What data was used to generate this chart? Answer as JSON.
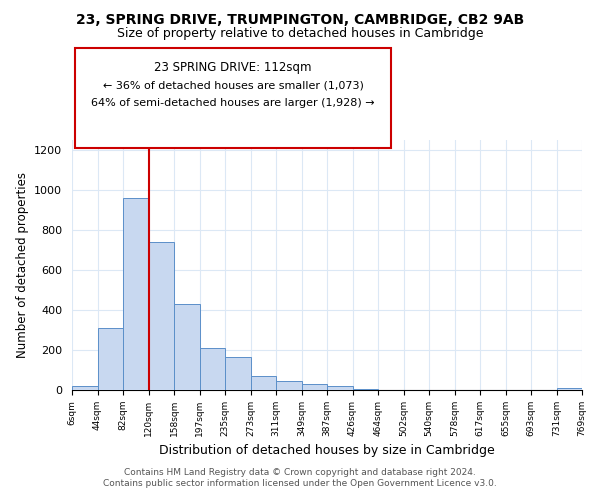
{
  "title": "23, SPRING DRIVE, TRUMPINGTON, CAMBRIDGE, CB2 9AB",
  "subtitle": "Size of property relative to detached houses in Cambridge",
  "xlabel": "Distribution of detached houses by size in Cambridge",
  "ylabel": "Number of detached properties",
  "bin_labels": [
    "6sqm",
    "44sqm",
    "82sqm",
    "120sqm",
    "158sqm",
    "197sqm",
    "235sqm",
    "273sqm",
    "311sqm",
    "349sqm",
    "387sqm",
    "426sqm",
    "464sqm",
    "502sqm",
    "540sqm",
    "578sqm",
    "617sqm",
    "655sqm",
    "693sqm",
    "731sqm",
    "769sqm"
  ],
  "bar_heights": [
    20,
    310,
    960,
    740,
    430,
    210,
    165,
    70,
    45,
    32,
    18,
    5,
    0,
    0,
    0,
    0,
    0,
    0,
    0,
    10,
    0
  ],
  "bar_color": "#c8d8f0",
  "bar_edge_color": "#5b8fc9",
  "property_line_x": 3,
  "property_line_label": "23 SPRING DRIVE: 112sqm",
  "annotation_line1": "← 36% of detached houses are smaller (1,073)",
  "annotation_line2": "64% of semi-detached houses are larger (1,928) →",
  "vline_color": "#cc0000",
  "annotation_box_edge_color": "#cc0000",
  "ylim": [
    0,
    1250
  ],
  "footer_line1": "Contains HM Land Registry data © Crown copyright and database right 2024.",
  "footer_line2": "Contains public sector information licensed under the Open Government Licence v3.0.",
  "background_color": "#ffffff",
  "grid_color": "#dce8f5"
}
